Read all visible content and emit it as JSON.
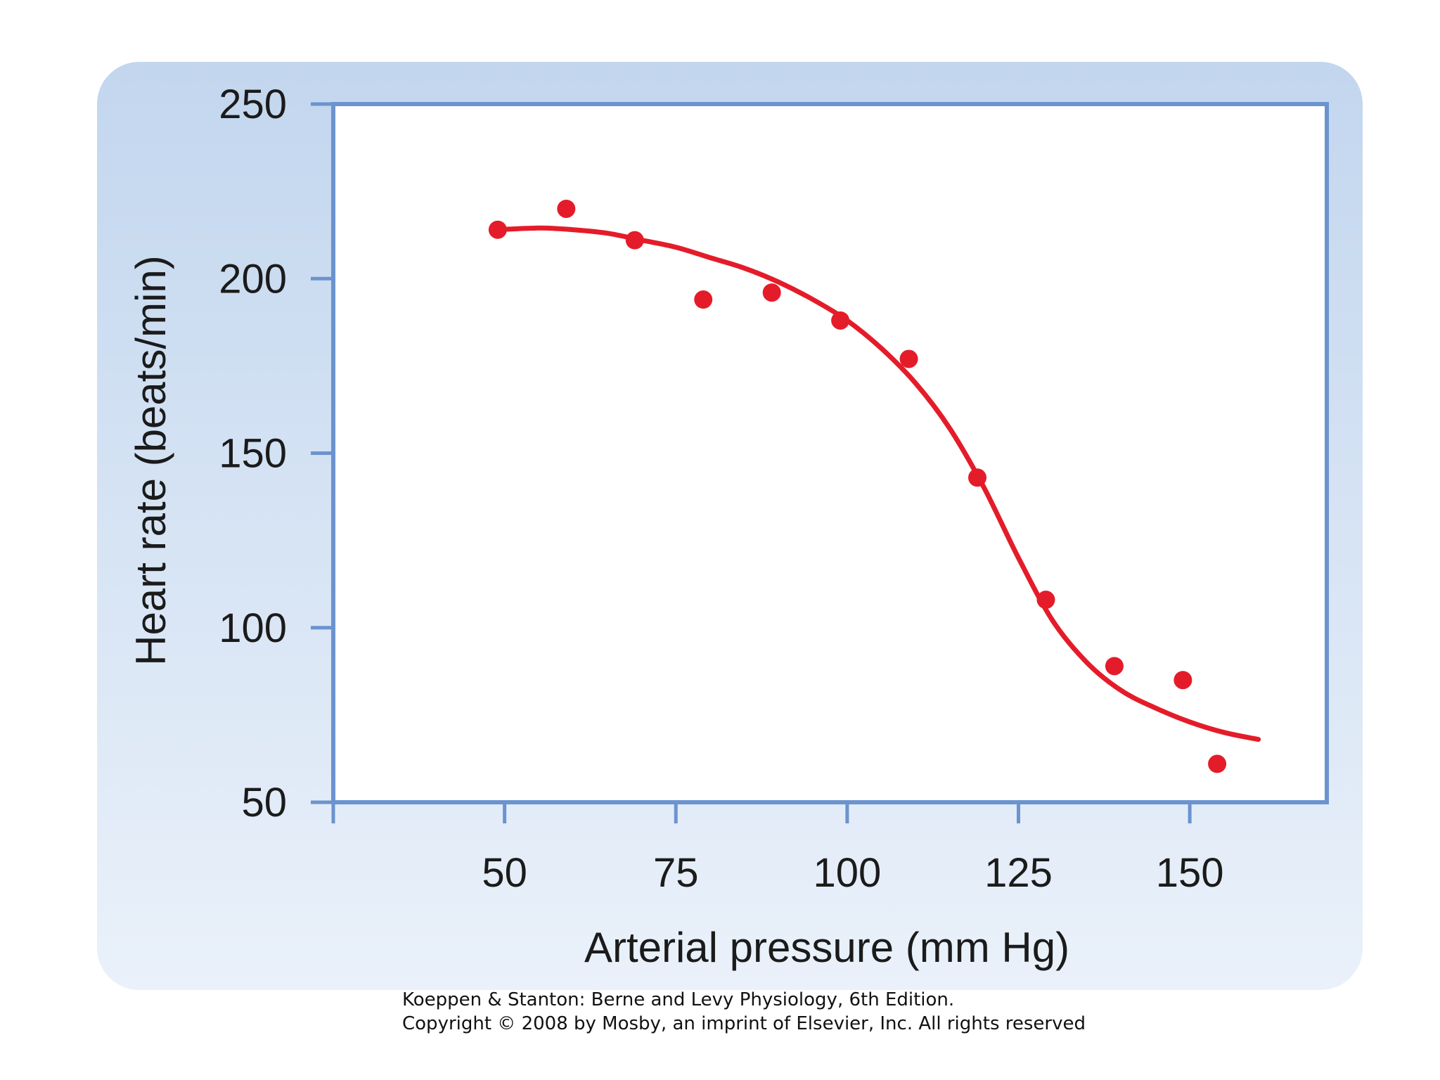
{
  "credit": {
    "line1": "Koeppen & Stanton: Berne and Levy Physiology, 6th Edition.",
    "line2": "Copyright © 2008 by Mosby, an imprint of Elsevier, Inc. All rights reserved"
  },
  "colors": {
    "panel_top": "#c2d6ee",
    "panel_bottom": "#eaf1fa",
    "frame": "#6b93cf",
    "series": "#e41c2a"
  },
  "chart_data": {
    "type": "scatter",
    "title": "",
    "xlabel": "Arterial pressure (mm Hg)",
    "ylabel": "Heart rate (beats/min)",
    "xlim": [
      25,
      170
    ],
    "ylim": [
      50,
      250
    ],
    "xticks": [
      "50",
      "75",
      "100",
      "125",
      "150"
    ],
    "xtick_values": [
      50,
      75,
      100,
      125,
      150
    ],
    "yticks": [
      "50",
      "100",
      "150",
      "200",
      "250"
    ],
    "ytick_values": [
      50,
      100,
      150,
      200,
      250
    ],
    "grid": false,
    "legend": "none",
    "series": [
      {
        "kind": "points",
        "x": [
          49,
          59,
          69,
          79,
          89,
          99,
          109,
          119,
          129,
          139,
          149,
          154
        ],
        "y": [
          214,
          220,
          211,
          194,
          196,
          188,
          177,
          143,
          108,
          89,
          85,
          61
        ]
      },
      {
        "kind": "fitted-curve",
        "x": [
          49,
          55,
          60,
          65,
          70,
          75,
          80,
          85,
          90,
          95,
          100,
          105,
          110,
          115,
          120,
          125,
          130,
          135,
          140,
          145,
          150,
          155,
          160
        ],
        "y": [
          214,
          214.5,
          214,
          213,
          211,
          209,
          206,
          203,
          199,
          194,
          188,
          180,
          170,
          157,
          140,
          120,
          102,
          90,
          82,
          77,
          73,
          70,
          68
        ]
      }
    ]
  }
}
